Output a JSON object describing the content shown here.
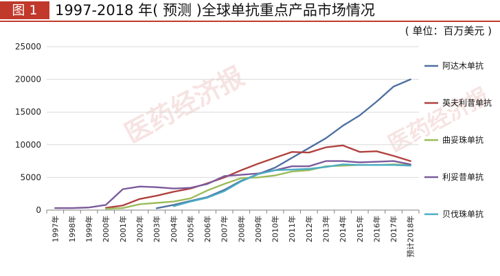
{
  "header": {
    "figure_label": "图 1",
    "title": "1997-2018 年( 预测 )全球单抗重点产品市场情况",
    "unit": "( 单位：百万美元 )"
  },
  "watermark": "医药经济报",
  "colors": {
    "accent": "#c0392b",
    "grid": "#d9d9d9",
    "axis": "#7f7f7f"
  },
  "chart_data": {
    "type": "line",
    "title": "1997-2018 年( 预测 )全球单抗重点产品市场情况",
    "xlabel": "",
    "ylabel": "",
    "unit": "( 单位：百万美元 )",
    "ylim": [
      0,
      25000
    ],
    "yticks": [
      0,
      5000,
      10000,
      15000,
      20000,
      25000
    ],
    "grid": true,
    "legend_position": "right",
    "categories": [
      "1997年",
      "1998年",
      "1999年",
      "2000年",
      "2001年",
      "2002年",
      "2003年",
      "2004年",
      "2005年",
      "2006年",
      "2007年",
      "2008年",
      "2009年",
      "2010年",
      "2011年",
      "2012年",
      "2013年",
      "2014年",
      "2015年",
      "2016年",
      "2017年",
      "预计2018年"
    ],
    "series": [
      {
        "name": "阿达木单抗",
        "color": "#4f6fa0",
        "values": [
          null,
          null,
          null,
          null,
          null,
          null,
          280,
          800,
          1400,
          2000,
          3100,
          4500,
          5500,
          6500,
          8000,
          9500,
          11000,
          12900,
          14500,
          16600,
          18900,
          20000
        ]
      },
      {
        "name": "英夫利昔单抗",
        "color": "#b0413e",
        "values": [
          null,
          null,
          null,
          350,
          700,
          1700,
          2200,
          2800,
          3300,
          4100,
          5000,
          6100,
          7100,
          8000,
          8900,
          8800,
          9600,
          9900,
          8900,
          9000,
          8300,
          7500
        ]
      },
      {
        "name": "曲妥珠单抗",
        "color": "#9bbb59",
        "values": [
          null,
          null,
          null,
          200,
          300,
          900,
          1100,
          1300,
          1800,
          3000,
          4000,
          4900,
          5000,
          5300,
          5900,
          6100,
          6700,
          6800,
          6900,
          6900,
          7000,
          6900
        ]
      },
      {
        "name": "利妥昔单抗",
        "color": "#7b5a9b",
        "values": [
          300,
          300,
          400,
          800,
          3200,
          3600,
          3500,
          3300,
          3400,
          4000,
          5200,
          5400,
          5600,
          6100,
          6700,
          6700,
          7500,
          7500,
          7300,
          7400,
          7500,
          7000
        ]
      },
      {
        "name": "贝伐珠单抗",
        "color": "#4bacc6",
        "values": [
          null,
          null,
          null,
          null,
          null,
          null,
          null,
          600,
          1300,
          1900,
          2900,
          4400,
          5500,
          6100,
          6200,
          6300,
          6600,
          7000,
          6900,
          6900,
          6900,
          6800
        ]
      }
    ]
  }
}
